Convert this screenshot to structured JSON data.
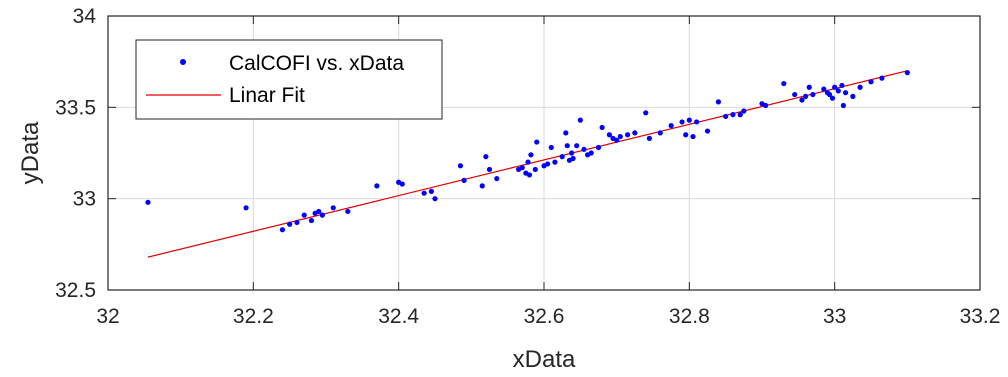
{
  "chart_data": {
    "type": "scatter",
    "xlabel": "xData",
    "ylabel": "yData",
    "xlim": [
      32,
      33.2
    ],
    "ylim": [
      32.5,
      34
    ],
    "xticks": [
      32,
      32.2,
      32.4,
      32.6,
      32.8,
      33,
      33.2
    ],
    "yticks": [
      32.5,
      33,
      33.5,
      34
    ],
    "xtick_labels": [
      "32",
      "32.2",
      "32.4",
      "32.6",
      "32.8",
      "33",
      "33.2"
    ],
    "ytick_labels": [
      "32.5",
      "33",
      "33.5",
      "34"
    ],
    "grid": true,
    "legend_position": "top-left",
    "colors": {
      "points": "#0000ff",
      "fit": "#e00000",
      "grid": "#d9d9d9",
      "axis": "#262626"
    },
    "series": [
      {
        "name": "CalCOFI vs. xData",
        "style": "points",
        "points": [
          [
            32.055,
            32.98
          ],
          [
            32.19,
            32.95
          ],
          [
            32.24,
            32.83
          ],
          [
            32.25,
            32.86
          ],
          [
            32.26,
            32.87
          ],
          [
            32.27,
            32.91
          ],
          [
            32.28,
            32.88
          ],
          [
            32.285,
            32.92
          ],
          [
            32.29,
            32.93
          ],
          [
            32.295,
            32.91
          ],
          [
            32.31,
            32.95
          ],
          [
            32.33,
            32.93
          ],
          [
            32.37,
            33.07
          ],
          [
            32.4,
            33.09
          ],
          [
            32.405,
            33.08
          ],
          [
            32.435,
            33.03
          ],
          [
            32.445,
            33.04
          ],
          [
            32.45,
            33.0
          ],
          [
            32.485,
            33.18
          ],
          [
            32.49,
            33.1
          ],
          [
            32.515,
            33.07
          ],
          [
            32.52,
            33.23
          ],
          [
            32.525,
            33.16
          ],
          [
            32.535,
            33.11
          ],
          [
            32.565,
            33.16
          ],
          [
            32.57,
            33.17
          ],
          [
            32.575,
            33.14
          ],
          [
            32.578,
            33.2
          ],
          [
            32.58,
            33.13
          ],
          [
            32.582,
            33.24
          ],
          [
            32.588,
            33.16
          ],
          [
            32.59,
            33.31
          ],
          [
            32.6,
            33.18
          ],
          [
            32.605,
            33.19
          ],
          [
            32.61,
            33.28
          ],
          [
            32.615,
            33.2
          ],
          [
            32.625,
            33.23
          ],
          [
            32.63,
            33.36
          ],
          [
            32.632,
            33.29
          ],
          [
            32.635,
            33.21
          ],
          [
            32.638,
            33.25
          ],
          [
            32.64,
            33.22
          ],
          [
            32.645,
            33.29
          ],
          [
            32.65,
            33.43
          ],
          [
            32.655,
            33.27
          ],
          [
            32.66,
            33.24
          ],
          [
            32.665,
            33.25
          ],
          [
            32.675,
            33.28
          ],
          [
            32.68,
            33.39
          ],
          [
            32.69,
            33.35
          ],
          [
            32.695,
            33.33
          ],
          [
            32.7,
            33.32
          ],
          [
            32.705,
            33.34
          ],
          [
            32.715,
            33.35
          ],
          [
            32.725,
            33.36
          ],
          [
            32.74,
            33.47
          ],
          [
            32.745,
            33.33
          ],
          [
            32.76,
            33.36
          ],
          [
            32.775,
            33.4
          ],
          [
            32.79,
            33.42
          ],
          [
            32.795,
            33.35
          ],
          [
            32.8,
            33.43
          ],
          [
            32.805,
            33.34
          ],
          [
            32.81,
            33.42
          ],
          [
            32.825,
            33.37
          ],
          [
            32.84,
            33.53
          ],
          [
            32.85,
            33.45
          ],
          [
            32.86,
            33.46
          ],
          [
            32.87,
            33.46
          ],
          [
            32.875,
            33.48
          ],
          [
            32.9,
            33.52
          ],
          [
            32.905,
            33.51
          ],
          [
            32.93,
            33.63
          ],
          [
            32.945,
            33.57
          ],
          [
            32.955,
            33.54
          ],
          [
            32.96,
            33.56
          ],
          [
            32.965,
            33.61
          ],
          [
            32.97,
            33.57
          ],
          [
            32.985,
            33.6
          ],
          [
            32.99,
            33.58
          ],
          [
            32.993,
            33.57
          ],
          [
            32.997,
            33.55
          ],
          [
            33.0,
            33.61
          ],
          [
            33.005,
            33.59
          ],
          [
            33.01,
            33.62
          ],
          [
            33.012,
            33.51
          ],
          [
            33.015,
            33.58
          ],
          [
            33.025,
            33.56
          ],
          [
            33.035,
            33.61
          ],
          [
            33.05,
            33.64
          ],
          [
            33.065,
            33.66
          ],
          [
            33.1,
            33.69
          ]
        ]
      },
      {
        "name": "Linar Fit",
        "style": "line",
        "points": [
          [
            32.055,
            32.68
          ],
          [
            33.1,
            33.7
          ]
        ]
      }
    ]
  }
}
